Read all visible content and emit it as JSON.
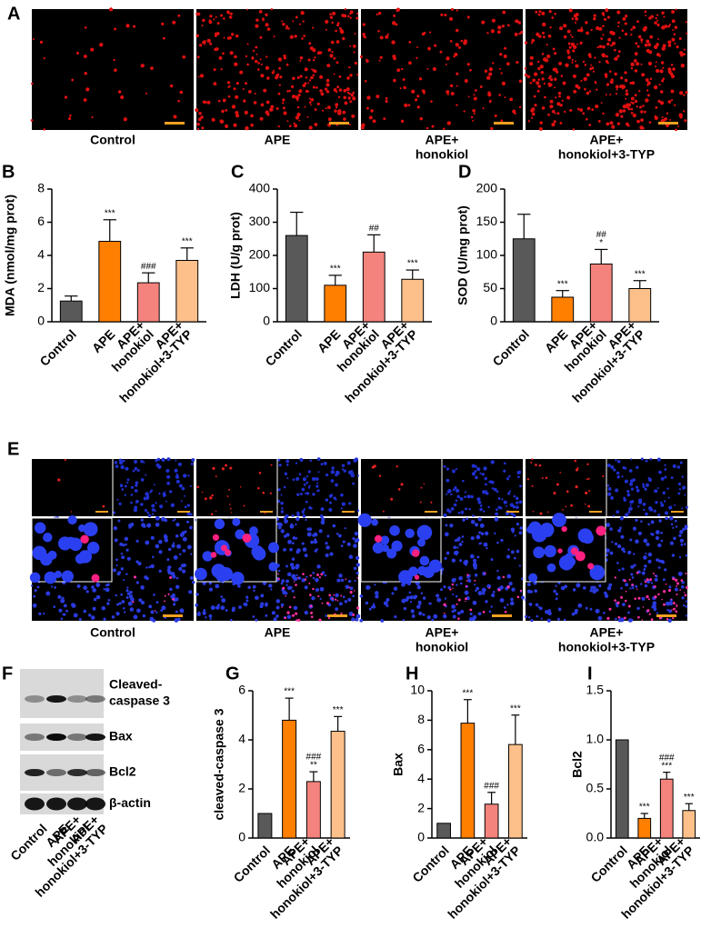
{
  "panel_a": {
    "label": "A",
    "captions": [
      [
        "Control"
      ],
      [
        "APE"
      ],
      [
        "APE+",
        "honokiol"
      ],
      [
        "APE+",
        "honokiol+3-TYP"
      ]
    ]
  },
  "panel_e": {
    "label": "E",
    "captions": [
      [
        "Control"
      ],
      [
        "APE"
      ],
      [
        "APE+",
        "honokiol"
      ],
      [
        "APE+",
        "honokiol+3-TYP"
      ]
    ]
  },
  "panel_f": {
    "label": "F",
    "bands": [
      [
        "Cleaved-",
        "caspase 3"
      ],
      [
        "Bax"
      ],
      [
        "Bcl2"
      ],
      [
        "β-actin"
      ]
    ],
    "lanes": [
      [
        "Control"
      ],
      [
        "APE"
      ],
      [
        "APE+",
        "honokiol"
      ],
      [
        "APE+",
        "honokiol+3-TYP"
      ]
    ]
  },
  "chart_data": [
    {
      "type": "bar",
      "panel": "B",
      "ylabel": "MDA (nmol/mg prot)",
      "categories": [
        [
          "Control"
        ],
        [
          "APE"
        ],
        [
          "APE+",
          "honokiol"
        ],
        [
          "APE+",
          "honokiol+3-TYP"
        ]
      ],
      "values": [
        1.25,
        4.85,
        2.35,
        3.7
      ],
      "errors": [
        0.3,
        1.3,
        0.6,
        0.75
      ],
      "significance": [
        null,
        [
          "***"
        ],
        [
          "###"
        ],
        [
          "***"
        ]
      ],
      "colors": [
        "#595959",
        "#ff7f00",
        "#f4837d",
        "#fdc08a"
      ],
      "ylim": [
        0,
        8
      ],
      "yticks": [
        0,
        2,
        4,
        6,
        8
      ]
    },
    {
      "type": "bar",
      "panel": "C",
      "ylabel": "LDH (U/g prot)",
      "categories": [
        [
          "Control"
        ],
        [
          "APE"
        ],
        [
          "APE+",
          "honokiol"
        ],
        [
          "APE+",
          "honokiol+3-TYP"
        ]
      ],
      "values": [
        260,
        110,
        210,
        128
      ],
      "errors": [
        70,
        30,
        52,
        28
      ],
      "significance": [
        null,
        [
          "***"
        ],
        [
          "##"
        ],
        [
          "***"
        ]
      ],
      "colors": [
        "#595959",
        "#ff7f00",
        "#f4837d",
        "#fdc08a"
      ],
      "ylim": [
        0,
        400
      ],
      "yticks": [
        0,
        100,
        200,
        300,
        400
      ]
    },
    {
      "type": "bar",
      "panel": "D",
      "ylabel": "SOD (U/mg prot)",
      "categories": [
        [
          "Control"
        ],
        [
          "APE"
        ],
        [
          "APE+",
          "honokiol"
        ],
        [
          "APE+",
          "honokiol+3-TYP"
        ]
      ],
      "values": [
        125,
        37,
        87,
        50
      ],
      "errors": [
        37,
        10,
        22,
        12
      ],
      "significance": [
        null,
        [
          "***"
        ],
        [
          "##",
          "*"
        ],
        [
          "***"
        ]
      ],
      "colors": [
        "#595959",
        "#ff7f00",
        "#f4837d",
        "#fdc08a"
      ],
      "ylim": [
        0,
        200
      ],
      "yticks": [
        0,
        50,
        100,
        150,
        200
      ]
    },
    {
      "type": "bar",
      "panel": "G",
      "ylabel": "cleaved-caspase 3",
      "categories": [
        [
          "Control"
        ],
        [
          "APE"
        ],
        [
          "APE+",
          "honokiol"
        ],
        [
          "APE+",
          "honokiol+3-TYP"
        ]
      ],
      "values": [
        1,
        4.8,
        2.3,
        4.35
      ],
      "errors": [
        null,
        0.9,
        0.4,
        0.6
      ],
      "significance": [
        null,
        [
          "***"
        ],
        [
          "###",
          "**"
        ],
        [
          "***"
        ]
      ],
      "colors": [
        "#595959",
        "#ff7f00",
        "#f4837d",
        "#fdc08a"
      ],
      "ylim": [
        0,
        6
      ],
      "yticks": [
        0,
        2,
        4,
        6
      ]
    },
    {
      "type": "bar",
      "panel": "H",
      "ylabel": "Bax",
      "categories": [
        [
          "Control"
        ],
        [
          "APE"
        ],
        [
          "APE+",
          "honokiol"
        ],
        [
          "APE+",
          "honokiol+3-TYP"
        ]
      ],
      "values": [
        1,
        7.8,
        2.3,
        6.35
      ],
      "errors": [
        null,
        1.6,
        0.8,
        2
      ],
      "significance": [
        null,
        [
          "***"
        ],
        [
          "###"
        ],
        [
          "***"
        ]
      ],
      "colors": [
        "#595959",
        "#ff7f00",
        "#f4837d",
        "#fdc08a"
      ],
      "ylim": [
        0,
        10
      ],
      "yticks": [
        0,
        2,
        4,
        6,
        8,
        10
      ]
    },
    {
      "type": "bar",
      "panel": "I",
      "ylabel": "Bcl2",
      "categories": [
        [
          "Control"
        ],
        [
          "APE"
        ],
        [
          "APE+",
          "honokiol"
        ],
        [
          "APE+",
          "honokiol+3-TYP"
        ]
      ],
      "values": [
        1,
        0.2,
        0.6,
        0.28
      ],
      "errors": [
        null,
        0.05,
        0.07,
        0.07
      ],
      "significance": [
        null,
        [
          "***"
        ],
        [
          "###",
          "***"
        ],
        [
          "***"
        ]
      ],
      "colors": [
        "#595959",
        "#ff7f00",
        "#f4837d",
        "#fdc08a"
      ],
      "ylim": [
        0,
        1.5
      ],
      "yticks": [
        {
          "value": 0,
          "label": "0.0"
        },
        {
          "value": 0.5,
          "label": "0.5"
        },
        {
          "value": 1,
          "label": "1.0"
        },
        1.5
      ]
    }
  ]
}
